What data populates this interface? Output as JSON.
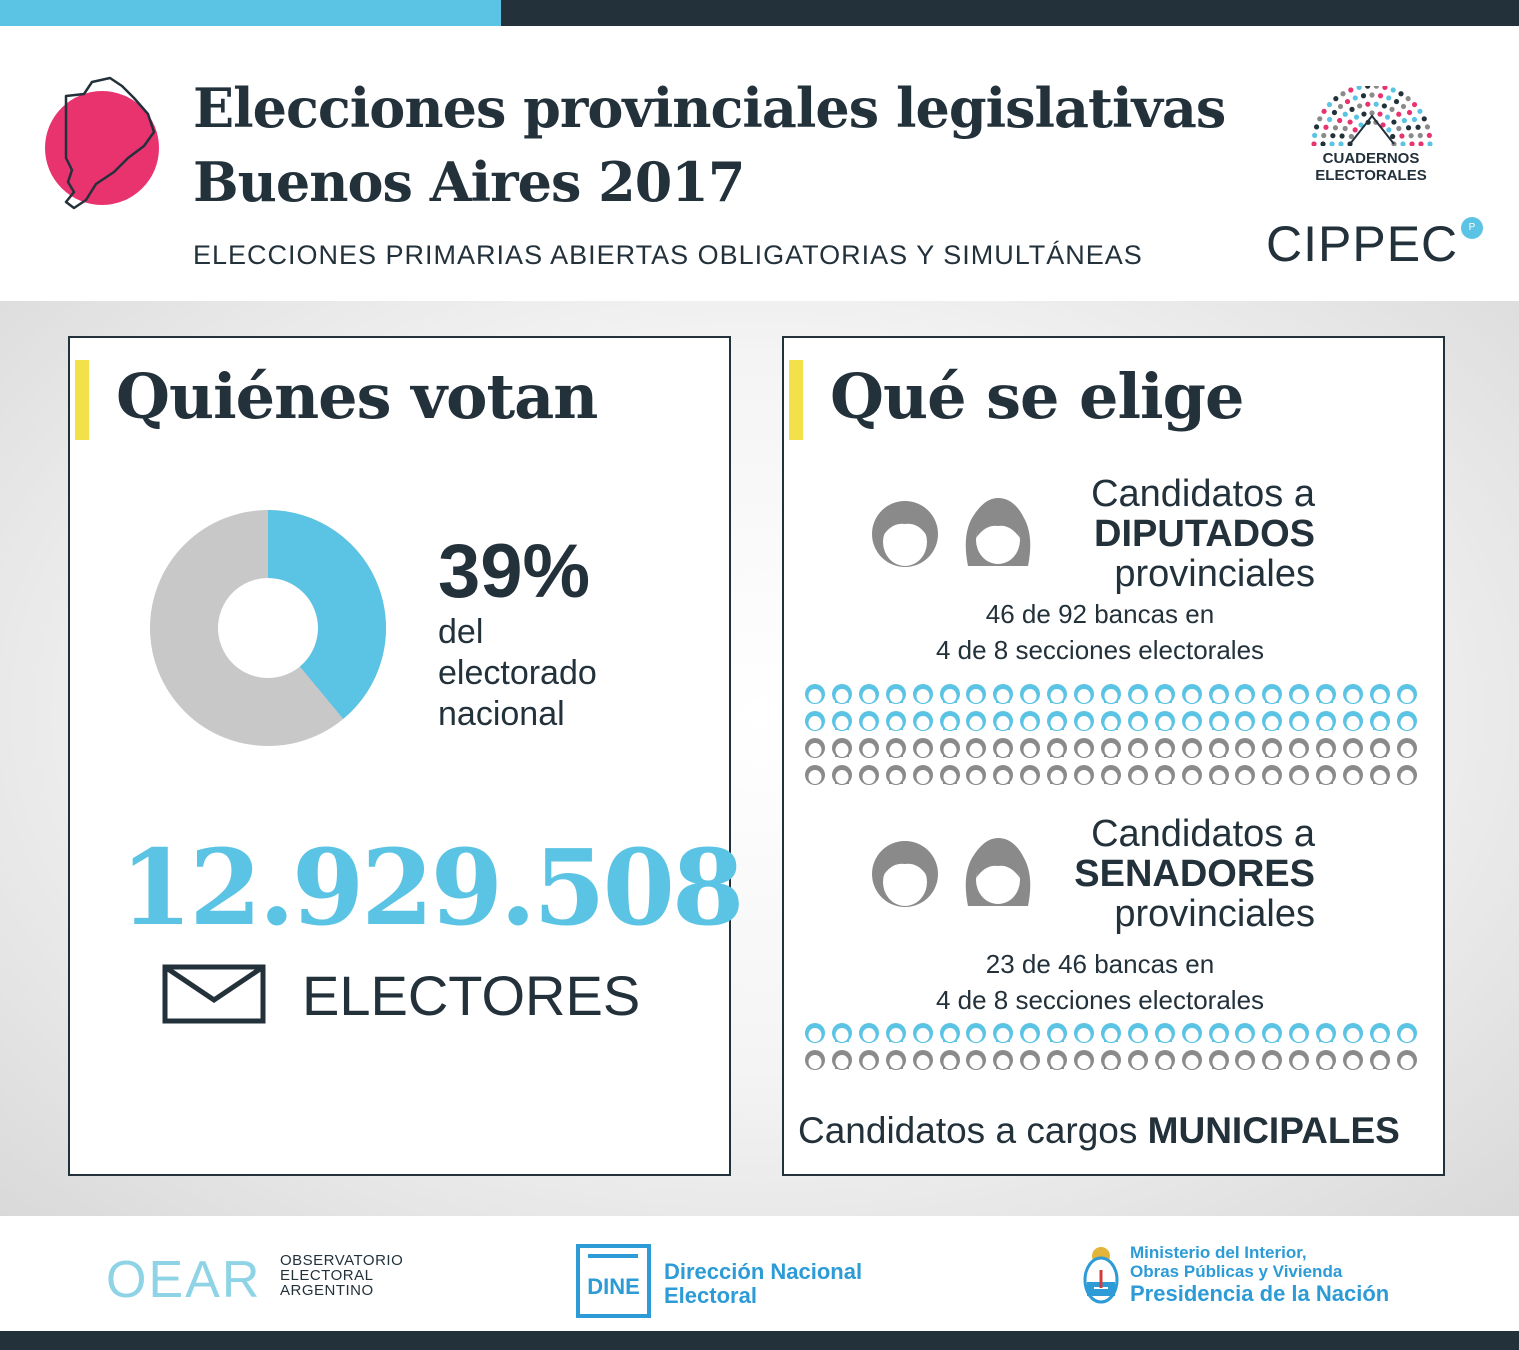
{
  "header": {
    "title_line1": "Elecciones provinciales legislativas",
    "title_line2": "Buenos Aires 2017",
    "subtitle": "ELECCIONES PRIMARIAS ABIERTAS OBLIGATORIAS Y SIMULTÁNEAS",
    "logo_ce_line1": "CUADERNOS",
    "logo_ce_line2": "ELECTORALES",
    "logo_cippec": "CIPPEC"
  },
  "left_panel": {
    "title": "Quiénes votan",
    "percent": "39%",
    "percent_desc": [
      "del",
      "electorado",
      "nacional"
    ],
    "percent_value": 39,
    "electors_number": "12.929.508",
    "electors_label": "ELECTORES"
  },
  "right_panel": {
    "title": "Qué se elige",
    "diputados": {
      "line1": "Candidatos a",
      "line2": "DIPUTADOS",
      "line3": "provinciales",
      "bancas_line1": "46 de 92 bancas en",
      "bancas_line2": "4 de 8 secciones electorales",
      "highlighted": 46,
      "total": 92
    },
    "senadores": {
      "line1": "Candidatos a",
      "line2": "SENADORES",
      "line3": "provinciales",
      "bancas_line1": "23 de 46 bancas en",
      "bancas_line2": "4 de 8 secciones electorales",
      "highlighted": 23,
      "total": 46
    },
    "municipales_prefix": "Candidatos a cargos ",
    "municipales_bold": "MUNICIPALES"
  },
  "footer": {
    "oear_logo": "OEAR",
    "oear_lines": [
      "OBSERVATORIO",
      "ELECTORAL",
      "ARGENTINO"
    ],
    "dine_logo": "DINE",
    "dne_lines": [
      "Dirección Nacional",
      "Electoral"
    ],
    "ministerio_line1": "Ministerio del Interior,",
    "ministerio_line2": "Obras Públicas y Vivienda",
    "ministerio_line3": "Presidencia de la Nación"
  },
  "colors": {
    "accent_blue": "#5bc3e3",
    "dark": "#23313b",
    "pink": "#e8336f",
    "yellow": "#f3e14a",
    "gray": "#c8c8c8",
    "footer_blue": "#2c9bd6"
  }
}
